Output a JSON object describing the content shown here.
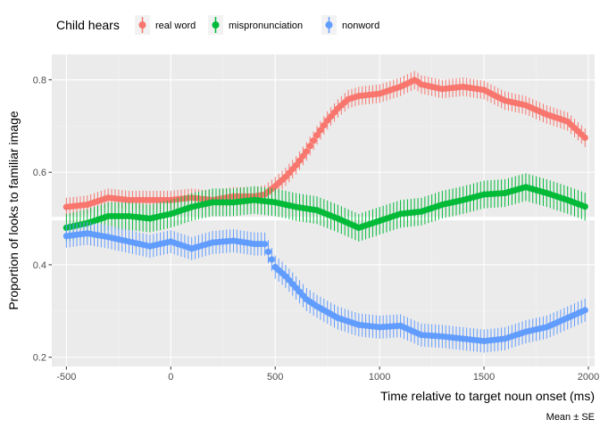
{
  "chart_data": {
    "type": "line",
    "xlabel": "Time relative to target noun onset (ms)",
    "ylabel": "Proportion of looks to familiar image",
    "caption": "Mean ± SE",
    "xlim": [
      -570,
      2030
    ],
    "ylim": [
      0.18,
      0.855
    ],
    "xticks": [
      -500,
      0,
      500,
      1000,
      1500,
      2000
    ],
    "xtick_labels": [
      "-500",
      "0",
      "500",
      "1000",
      "1500",
      "2000"
    ],
    "yticks": [
      0.2,
      0.4,
      0.6,
      0.8
    ],
    "ytick_labels": [
      "0.2",
      "0.4",
      "0.6",
      "0.8"
    ],
    "reference_line": 0.5,
    "grid": true,
    "legend": {
      "title": "Child hears",
      "placement": "top"
    },
    "series": [
      {
        "name": "real word",
        "color": "#F8766D",
        "points": [
          [
            -500,
            0.525
          ],
          [
            -400,
            0.53
          ],
          [
            -300,
            0.545
          ],
          [
            -200,
            0.54
          ],
          [
            -100,
            0.54
          ],
          [
            0,
            0.54
          ],
          [
            100,
            0.545
          ],
          [
            200,
            0.54
          ],
          [
            300,
            0.548
          ],
          [
            400,
            0.548
          ],
          [
            450,
            0.552
          ],
          [
            500,
            0.57
          ],
          [
            550,
            0.59
          ],
          [
            600,
            0.615
          ],
          [
            650,
            0.645
          ],
          [
            700,
            0.68
          ],
          [
            750,
            0.712
          ],
          [
            800,
            0.738
          ],
          [
            850,
            0.758
          ],
          [
            900,
            0.765
          ],
          [
            1000,
            0.77
          ],
          [
            1100,
            0.785
          ],
          [
            1170,
            0.8
          ],
          [
            1200,
            0.79
          ],
          [
            1300,
            0.78
          ],
          [
            1400,
            0.785
          ],
          [
            1500,
            0.778
          ],
          [
            1600,
            0.755
          ],
          [
            1700,
            0.745
          ],
          [
            1800,
            0.725
          ],
          [
            1900,
            0.71
          ],
          [
            2000,
            0.668
          ]
        ],
        "se": 0.02
      },
      {
        "name": "mispronunciation",
        "color": "#00BA38",
        "points": [
          [
            -500,
            0.48
          ],
          [
            -400,
            0.49
          ],
          [
            -300,
            0.505
          ],
          [
            -200,
            0.505
          ],
          [
            -100,
            0.5
          ],
          [
            0,
            0.51
          ],
          [
            100,
            0.525
          ],
          [
            200,
            0.535
          ],
          [
            300,
            0.535
          ],
          [
            400,
            0.54
          ],
          [
            500,
            0.535
          ],
          [
            600,
            0.525
          ],
          [
            700,
            0.518
          ],
          [
            800,
            0.5
          ],
          [
            900,
            0.48
          ],
          [
            1000,
            0.495
          ],
          [
            1100,
            0.51
          ],
          [
            1200,
            0.515
          ],
          [
            1300,
            0.53
          ],
          [
            1400,
            0.54
          ],
          [
            1500,
            0.552
          ],
          [
            1600,
            0.555
          ],
          [
            1700,
            0.568
          ],
          [
            1800,
            0.555
          ],
          [
            1900,
            0.54
          ],
          [
            2000,
            0.523
          ]
        ],
        "se": 0.03
      },
      {
        "name": "nonword",
        "color": "#619CFF",
        "points": [
          [
            -500,
            0.462
          ],
          [
            -400,
            0.468
          ],
          [
            -300,
            0.46
          ],
          [
            -200,
            0.45
          ],
          [
            -100,
            0.44
          ],
          [
            0,
            0.45
          ],
          [
            100,
            0.435
          ],
          [
            200,
            0.448
          ],
          [
            300,
            0.452
          ],
          [
            400,
            0.445
          ],
          [
            450,
            0.445
          ],
          [
            500,
            0.395
          ],
          [
            550,
            0.375
          ],
          [
            600,
            0.35
          ],
          [
            650,
            0.325
          ],
          [
            700,
            0.31
          ],
          [
            800,
            0.285
          ],
          [
            900,
            0.27
          ],
          [
            1000,
            0.265
          ],
          [
            1100,
            0.268
          ],
          [
            1200,
            0.248
          ],
          [
            1300,
            0.245
          ],
          [
            1400,
            0.24
          ],
          [
            1500,
            0.235
          ],
          [
            1600,
            0.24
          ],
          [
            1700,
            0.255
          ],
          [
            1800,
            0.265
          ],
          [
            1900,
            0.285
          ],
          [
            2000,
            0.305
          ]
        ],
        "se": 0.025
      }
    ]
  }
}
